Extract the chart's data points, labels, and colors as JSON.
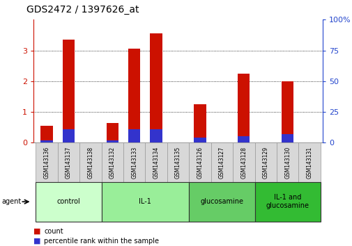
{
  "title": "GDS2472 / 1397626_at",
  "samples": [
    "GSM143136",
    "GSM143137",
    "GSM143138",
    "GSM143132",
    "GSM143133",
    "GSM143134",
    "GSM143135",
    "GSM143126",
    "GSM143127",
    "GSM143128",
    "GSM143129",
    "GSM143130",
    "GSM143131"
  ],
  "count_values": [
    0.55,
    3.35,
    0.0,
    0.65,
    3.05,
    3.55,
    0.0,
    1.25,
    0.0,
    2.25,
    0.0,
    2.0,
    0.0
  ],
  "percentile_values": [
    0.08,
    0.43,
    0.0,
    0.07,
    0.43,
    0.43,
    0.0,
    0.17,
    0.0,
    0.22,
    0.0,
    0.28,
    0.0
  ],
  "groups": [
    {
      "label": "control",
      "start": 0,
      "end": 3
    },
    {
      "label": "IL-1",
      "start": 3,
      "end": 7
    },
    {
      "label": "glucosamine",
      "start": 7,
      "end": 10
    },
    {
      "label": "IL-1 and\nglucosamine",
      "start": 10,
      "end": 13
    }
  ],
  "group_colors": [
    "#ccffcc",
    "#99ee99",
    "#66cc66",
    "#33bb33"
  ],
  "bar_color_red": "#cc1100",
  "bar_color_blue": "#3333cc",
  "ylim_left": [
    0,
    4
  ],
  "ylim_right": [
    0,
    100
  ],
  "yticks_left": [
    0,
    1,
    2,
    3,
    4
  ],
  "yticks_right": [
    0,
    25,
    50,
    75,
    100
  ],
  "xlabel_color": "#cc1100",
  "right_axis_color": "#2244cc"
}
